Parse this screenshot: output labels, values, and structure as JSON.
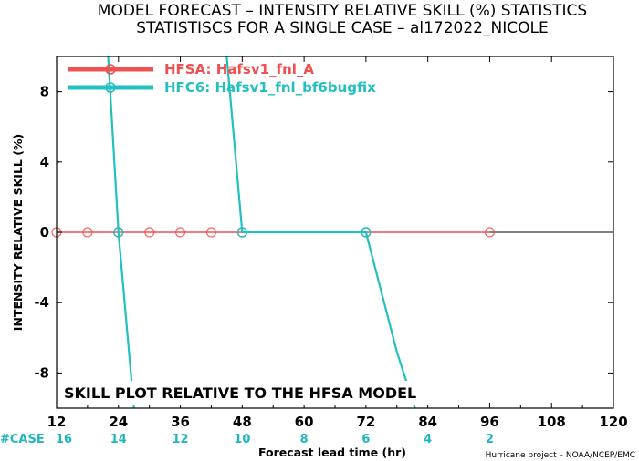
{
  "chart_data": {
    "type": "line",
    "title": "MODEL FORECAST – INTENSITY RELATIVE SKILL (%) STATISTICS",
    "subtitle": "STATISTISCS FOR A SINGLE CASE – al172022_NICOLE",
    "xlabel": "Forecast lead time (hr)",
    "ylabel": "INTENSITY RELATIVE SKILL (%)",
    "xlim": [
      12,
      120
    ],
    "ylim": [
      -10,
      10
    ],
    "x_ticks": [
      12,
      24,
      36,
      48,
      60,
      72,
      84,
      96,
      108,
      120
    ],
    "y_ticks": [
      -8,
      -4,
      0,
      4,
      8
    ],
    "grid": false,
    "legend_position": "top-left",
    "annotation": "SKILL PLOT RELATIVE TO THE HFSA MODEL",
    "case_label": "#CASE",
    "case_x": [
      12,
      24,
      36,
      48,
      60,
      72,
      84,
      96
    ],
    "case_counts": [
      "16",
      "14",
      "12",
      "10",
      "8",
      "6",
      "4",
      "2"
    ],
    "credit": "Hurricane project – NOAA/NCEP/EMC",
    "series": [
      {
        "name": "HFSA: Hafsv1_fnl_A",
        "color": "#f05050",
        "x": [
          12,
          18,
          24,
          30,
          36,
          42,
          48,
          54,
          60,
          66,
          72,
          78,
          84,
          90,
          96
        ],
        "y": [
          0,
          0,
          0,
          0,
          0,
          0,
          0,
          0,
          0,
          0,
          0,
          0,
          0,
          0,
          0
        ],
        "markers_x": [
          12,
          18,
          24,
          30,
          36,
          42,
          48,
          72,
          96
        ]
      },
      {
        "name": "HFC6: Hafsv1_fnl_bf6bugfix",
        "color": "#22c0c0",
        "segments": [
          {
            "x": [
              22,
              24,
              27
            ],
            "y": [
              10,
              0,
              -10
            ]
          },
          {
            "x": [
              45,
              48
            ],
            "y": [
              10,
              0
            ]
          },
          {
            "x": [
              48,
              72,
              78,
              81.5
            ],
            "y": [
              0,
              0,
              -6.8,
              -10
            ]
          }
        ],
        "markers_x": [
          24,
          48,
          72
        ],
        "markers_y": [
          0,
          0,
          0
        ]
      }
    ]
  }
}
